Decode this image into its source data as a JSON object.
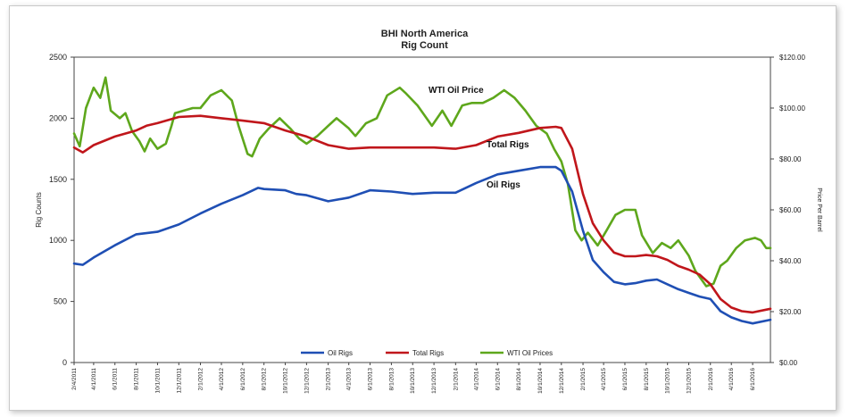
{
  "chart_data": {
    "type": "line",
    "title": "BHI North America",
    "subtitle": "Rig Count",
    "ylabel": "Rig Counts",
    "y2label": "Price Per Barrel",
    "ylim": [
      0,
      2500
    ],
    "y2lim": [
      0,
      120
    ],
    "yticks": [
      0,
      500,
      1000,
      1500,
      2000,
      2500
    ],
    "y2ticks": [
      "$0.00",
      "$20.00",
      "$40.00",
      "$60.00",
      "$80.00",
      "$100.00",
      "$120.00"
    ],
    "xlim": [
      "2011-02-04",
      "2016-07-22"
    ],
    "xticks": [
      "2/4/2011",
      "4/1/2011",
      "6/1/2011",
      "8/1/2011",
      "10/1/2011",
      "12/1/2011",
      "2/1/2012",
      "4/1/2012",
      "6/1/2012",
      "8/1/2012",
      "10/1/2012",
      "12/1/2012",
      "2/1/2013",
      "4/1/2013",
      "6/1/2013",
      "8/1/2013",
      "10/1/2013",
      "12/1/2013",
      "2/1/2014",
      "4/1/2014",
      "6/1/2014",
      "8/1/2014",
      "10/1/2014",
      "12/1/2014",
      "2/1/2015",
      "4/1/2015",
      "6/1/2015",
      "8/1/2015",
      "10/1/2015",
      "12/1/2015",
      "2/1/2016",
      "4/1/2016",
      "6/1/2016"
    ],
    "grid": false,
    "legend_position": "bottom",
    "annotations": [
      {
        "text": "WTI Oil Price",
        "series": "WTI Oil Prices"
      },
      {
        "text": "Total Rigs",
        "series": "Total Rigs"
      },
      {
        "text": "Oil Rigs",
        "series": "Oil Rigs"
      }
    ],
    "series": [
      {
        "name": "Oil Rigs",
        "axis": "left",
        "color": "#1f4fb4",
        "x": [
          "2011-02-04",
          "2011-03-01",
          "2011-04-01",
          "2011-06-01",
          "2011-08-01",
          "2011-10-01",
          "2011-12-01",
          "2012-02-01",
          "2012-04-01",
          "2012-06-01",
          "2012-07-15",
          "2012-08-01",
          "2012-10-01",
          "2012-11-01",
          "2012-12-01",
          "2013-02-01",
          "2013-04-01",
          "2013-06-01",
          "2013-08-01",
          "2013-10-01",
          "2013-12-01",
          "2014-02-01",
          "2014-04-01",
          "2014-06-01",
          "2014-08-01",
          "2014-10-01",
          "2014-11-15",
          "2014-12-01",
          "2015-01-01",
          "2015-02-01",
          "2015-03-01",
          "2015-04-01",
          "2015-05-01",
          "2015-06-01",
          "2015-07-01",
          "2015-08-01",
          "2015-09-01",
          "2015-10-01",
          "2015-11-01",
          "2015-12-01",
          "2016-01-01",
          "2016-02-01",
          "2016-03-01",
          "2016-04-01",
          "2016-05-01",
          "2016-06-01",
          "2016-07-22"
        ],
        "values": [
          810,
          800,
          860,
          960,
          1050,
          1070,
          1130,
          1220,
          1300,
          1370,
          1430,
          1420,
          1410,
          1380,
          1370,
          1320,
          1350,
          1410,
          1400,
          1380,
          1390,
          1390,
          1470,
          1540,
          1570,
          1600,
          1600,
          1570,
          1400,
          1080,
          840,
          740,
          660,
          640,
          650,
          670,
          680,
          640,
          600,
          570,
          540,
          520,
          420,
          370,
          340,
          320,
          350
        ]
      },
      {
        "name": "Total Rigs",
        "axis": "left",
        "color": "#c0161b",
        "x": [
          "2011-02-04",
          "2011-03-01",
          "2011-04-01",
          "2011-06-01",
          "2011-08-01",
          "2011-09-01",
          "2011-10-01",
          "2011-12-01",
          "2012-02-01",
          "2012-04-01",
          "2012-06-01",
          "2012-08-01",
          "2012-10-01",
          "2012-12-01",
          "2013-02-01",
          "2013-04-01",
          "2013-06-01",
          "2013-08-01",
          "2013-10-01",
          "2013-12-01",
          "2014-02-01",
          "2014-04-01",
          "2014-06-01",
          "2014-08-01",
          "2014-10-01",
          "2014-11-15",
          "2014-12-01",
          "2015-01-01",
          "2015-02-01",
          "2015-03-01",
          "2015-04-01",
          "2015-05-01",
          "2015-06-01",
          "2015-07-01",
          "2015-08-01",
          "2015-09-01",
          "2015-10-01",
          "2015-11-01",
          "2015-12-01",
          "2016-01-01",
          "2016-02-01",
          "2016-03-01",
          "2016-04-01",
          "2016-05-01",
          "2016-06-01",
          "2016-07-22"
        ],
        "values": [
          1760,
          1720,
          1780,
          1850,
          1900,
          1940,
          1960,
          2010,
          2020,
          2000,
          1980,
          1960,
          1900,
          1850,
          1780,
          1750,
          1760,
          1760,
          1760,
          1760,
          1750,
          1780,
          1850,
          1880,
          1920,
          1930,
          1920,
          1750,
          1380,
          1140,
          1000,
          900,
          870,
          870,
          880,
          870,
          840,
          790,
          760,
          720,
          640,
          520,
          450,
          420,
          410,
          440
        ]
      },
      {
        "name": "WTI Oil Prices",
        "axis": "right",
        "color": "#5ea71c",
        "x": [
          "2011-02-04",
          "2011-02-20",
          "2011-03-10",
          "2011-04-01",
          "2011-04-20",
          "2011-05-05",
          "2011-05-20",
          "2011-06-15",
          "2011-07-01",
          "2011-07-20",
          "2011-08-10",
          "2011-08-25",
          "2011-09-10",
          "2011-10-01",
          "2011-10-25",
          "2011-11-10",
          "2011-11-20",
          "2011-12-15",
          "2012-01-10",
          "2012-02-01",
          "2012-03-01",
          "2012-04-01",
          "2012-05-01",
          "2012-05-20",
          "2012-06-15",
          "2012-06-28",
          "2012-07-20",
          "2012-08-15",
          "2012-09-15",
          "2012-10-15",
          "2012-11-10",
          "2012-12-01",
          "2013-01-01",
          "2013-02-01",
          "2013-02-25",
          "2013-04-01",
          "2013-04-20",
          "2013-05-20",
          "2013-06-20",
          "2013-07-20",
          "2013-08-25",
          "2013-09-10",
          "2013-10-15",
          "2013-11-25",
          "2013-12-25",
          "2014-01-20",
          "2014-02-20",
          "2014-03-20",
          "2014-04-20",
          "2014-05-20",
          "2014-06-20",
          "2014-07-20",
          "2014-08-20",
          "2014-09-20",
          "2014-10-20",
          "2014-11-10",
          "2014-12-01",
          "2014-12-20",
          "2015-01-10",
          "2015-01-28",
          "2015-02-15",
          "2015-03-15",
          "2015-04-10",
          "2015-05-05",
          "2015-06-01",
          "2015-07-01",
          "2015-07-20",
          "2015-08-20",
          "2015-09-15",
          "2015-10-10",
          "2015-11-01",
          "2015-12-01",
          "2015-12-20",
          "2016-01-20",
          "2016-02-10",
          "2016-03-01",
          "2016-03-20",
          "2016-04-15",
          "2016-05-10",
          "2016-06-08",
          "2016-06-25",
          "2016-07-10",
          "2016-07-22"
        ],
        "values": [
          90,
          85,
          100,
          108,
          104,
          112,
          99,
          96,
          98,
          91,
          87,
          83,
          88,
          84,
          86,
          93,
          98,
          99,
          100,
          100,
          105,
          107,
          103,
          93,
          82,
          81,
          88,
          92,
          96,
          92,
          88,
          86,
          89,
          93,
          96,
          92,
          89,
          94,
          96,
          105,
          108,
          106,
          101,
          93,
          99,
          93,
          101,
          102,
          102,
          104,
          107,
          104,
          99,
          93,
          90,
          84,
          79,
          70,
          52,
          48,
          51,
          46,
          52,
          58,
          60,
          60,
          50,
          43,
          47,
          45,
          48,
          42,
          36,
          30,
          31,
          38,
          40,
          45,
          48,
          49,
          48,
          45,
          45
        ]
      }
    ],
    "legend": [
      "Oil Rigs",
      "Total Rigs",
      "WTI Oil Prices"
    ]
  }
}
